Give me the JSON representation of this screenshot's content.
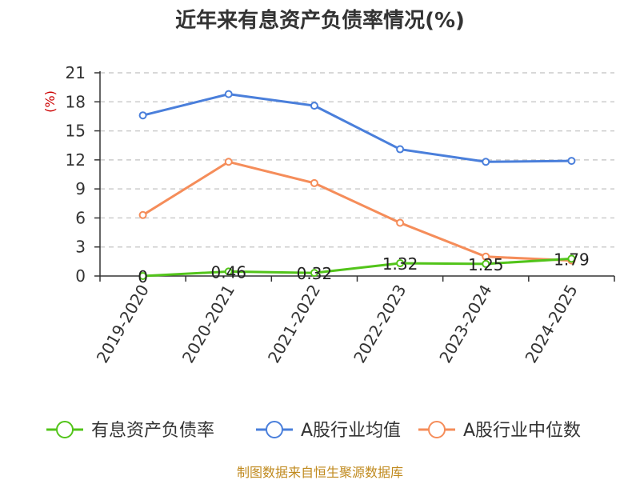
{
  "chart_data": {
    "type": "line",
    "title": "近年来有息资产负债率情况(%)",
    "ylabel": "(%)",
    "categories": [
      "2019-2020",
      "2020-2021",
      "2021-2022",
      "2022-2023",
      "2023-2024",
      "2024-2025"
    ],
    "ylim": [
      0,
      21
    ],
    "yticks": [
      "0",
      "3",
      "6",
      "9",
      "12",
      "15",
      "18",
      "21"
    ],
    "grid": true,
    "legend_position": "bottom",
    "series": [
      {
        "name": "有息资产负债率",
        "color": "#52c41a",
        "values": [
          0,
          0.46,
          0.32,
          1.32,
          1.25,
          1.79
        ],
        "labels": [
          "0",
          "0.46",
          "0.32",
          "1.32",
          "1.25",
          "1.79"
        ]
      },
      {
        "name": "A股行业均值",
        "color": "#4a7fdb",
        "values": [
          16.6,
          18.8,
          17.6,
          13.1,
          11.8,
          11.9
        ]
      },
      {
        "name": "A股行业中位数",
        "color": "#f58d5a",
        "values": [
          6.3,
          11.8,
          9.6,
          5.5,
          2.0,
          1.6
        ]
      }
    ],
    "source": "制图数据来自恒生聚源数据库"
  }
}
